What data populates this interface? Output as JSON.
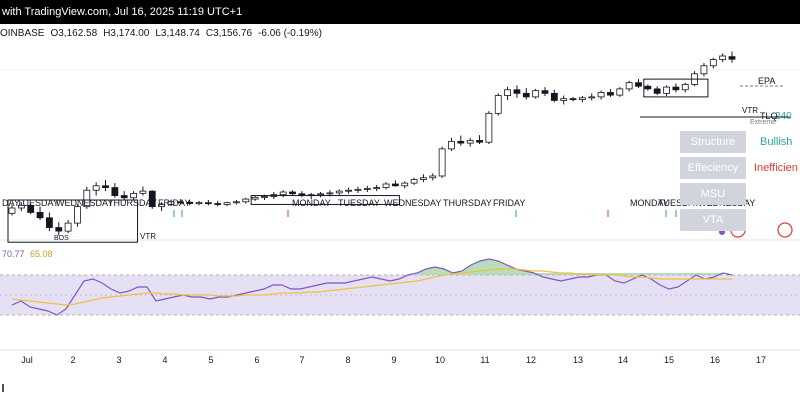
{
  "header": {
    "text": "with TradingView.com, Jul 16, 2025 11:19 UTC+1"
  },
  "ohlc": {
    "symbol": "OINBASE",
    "open_label": "O",
    "open": "3,162.58",
    "high_label": "H",
    "high": "3,174.00",
    "low_label": "L",
    "low": "3,148.74",
    "close_label": "C",
    "close": "3,156.76",
    "change": "-6.06 (-0.19%)"
  },
  "colors": {
    "up": "#ffffff",
    "down": "#131722",
    "candle_border": "#131722",
    "rsi_line": "#7e57c2",
    "rsi_ma": "#f0c040",
    "rsi_band": "#e6e0f5",
    "bullish": "#26a69a",
    "inefficient": "#e53935",
    "label_box": "#d1d4dc"
  },
  "chart_data": [
    {
      "type": "candlestick",
      "title": "",
      "ylim": [
        2750,
        3200
      ],
      "y_tick_labels": [],
      "candles": [
        [
          2810,
          2830,
          2805,
          2822
        ],
        [
          2822,
          2835,
          2815,
          2828
        ],
        [
          2828,
          2832,
          2808,
          2812
        ],
        [
          2812,
          2825,
          2795,
          2800
        ],
        [
          2800,
          2812,
          2770,
          2778
        ],
        [
          2778,
          2790,
          2760,
          2770
        ],
        [
          2770,
          2795,
          2765,
          2788
        ],
        [
          2788,
          2830,
          2780,
          2825
        ],
        [
          2825,
          2870,
          2820,
          2862
        ],
        [
          2862,
          2880,
          2850,
          2872
        ],
        [
          2872,
          2885,
          2860,
          2868
        ],
        [
          2868,
          2878,
          2845,
          2850
        ],
        [
          2850,
          2860,
          2840,
          2845
        ],
        [
          2845,
          2860,
          2840,
          2855
        ],
        [
          2855,
          2870,
          2850,
          2860
        ],
        [
          2860,
          2862,
          2820,
          2825
        ],
        [
          2825,
          2835,
          2815,
          2830
        ],
        [
          2830,
          2840,
          2826,
          2836
        ],
        [
          2836,
          2842,
          2830,
          2835
        ],
        [
          2835,
          2840,
          2828,
          2832
        ],
        [
          2832,
          2838,
          2828,
          2834
        ],
        [
          2834,
          2840,
          2828,
          2832
        ],
        [
          2832,
          2838,
          2826,
          2830
        ],
        [
          2830,
          2836,
          2826,
          2834
        ],
        [
          2834,
          2840,
          2830,
          2836
        ],
        [
          2836,
          2845,
          2832,
          2842
        ],
        [
          2842,
          2850,
          2838,
          2846
        ],
        [
          2846,
          2852,
          2840,
          2848
        ],
        [
          2848,
          2858,
          2842,
          2852
        ],
        [
          2852,
          2862,
          2846,
          2858
        ],
        [
          2858,
          2862,
          2850,
          2854
        ],
        [
          2854,
          2860,
          2846,
          2850
        ],
        [
          2850,
          2856,
          2842,
          2852
        ],
        [
          2852,
          2858,
          2846,
          2854
        ],
        [
          2854,
          2862,
          2848,
          2856
        ],
        [
          2856,
          2864,
          2850,
          2860
        ],
        [
          2860,
          2868,
          2854,
          2862
        ],
        [
          2862,
          2870,
          2856,
          2864
        ],
        [
          2864,
          2872,
          2858,
          2866
        ],
        [
          2866,
          2874,
          2860,
          2868
        ],
        [
          2868,
          2880,
          2864,
          2876
        ],
        [
          2876,
          2884,
          2870,
          2872
        ],
        [
          2872,
          2882,
          2866,
          2878
        ],
        [
          2878,
          2890,
          2874,
          2886
        ],
        [
          2886,
          2898,
          2880,
          2890
        ],
        [
          2890,
          2900,
          2884,
          2894
        ],
        [
          2894,
          2960,
          2890,
          2955
        ],
        [
          2955,
          2980,
          2950,
          2972
        ],
        [
          2972,
          2985,
          2962,
          2968
        ],
        [
          2968,
          2980,
          2960,
          2974
        ],
        [
          2974,
          2986,
          2966,
          2970
        ],
        [
          2970,
          3040,
          2966,
          3035
        ],
        [
          3035,
          3080,
          3030,
          3075
        ],
        [
          3075,
          3095,
          3065,
          3088
        ],
        [
          3088,
          3098,
          3070,
          3080
        ],
        [
          3080,
          3092,
          3066,
          3072
        ],
        [
          3072,
          3090,
          3068,
          3086
        ],
        [
          3086,
          3094,
          3074,
          3080
        ],
        [
          3080,
          3088,
          3060,
          3064
        ],
        [
          3064,
          3075,
          3055,
          3068
        ],
        [
          3068,
          3072,
          3062,
          3066
        ],
        [
          3066,
          3074,
          3060,
          3070
        ],
        [
          3070,
          3080,
          3064,
          3072
        ],
        [
          3072,
          3086,
          3066,
          3082
        ],
        [
          3082,
          3090,
          3072,
          3076
        ],
        [
          3076,
          3094,
          3072,
          3090
        ],
        [
          3090,
          3108,
          3084,
          3104
        ],
        [
          3104,
          3112,
          3092,
          3096
        ],
        [
          3096,
          3100,
          3086,
          3090
        ],
        [
          3090,
          3096,
          3076,
          3080
        ],
        [
          3080,
          3098,
          3074,
          3094
        ],
        [
          3094,
          3102,
          3082,
          3088
        ],
        [
          3088,
          3104,
          3082,
          3100
        ],
        [
          3100,
          3130,
          3096,
          3124
        ],
        [
          3124,
          3148,
          3118,
          3142
        ],
        [
          3142,
          3160,
          3136,
          3156
        ],
        [
          3156,
          3170,
          3150,
          3164
        ],
        [
          3162.58,
          3174,
          3148.74,
          3156.76
        ]
      ],
      "annotations": [
        {
          "text": "EPA"
        },
        {
          "text": "VTR"
        },
        {
          "text": "VTR"
        },
        {
          "text": "TLQ"
        },
        {
          "text": "240"
        },
        {
          "text": "Extreme"
        },
        {
          "text": "BOS"
        }
      ],
      "day_labels": [
        "DAY",
        "TUESDAY",
        "WEDNESDAY",
        "THURSDAY",
        "FRIDAY",
        "MONDAY",
        "TUESDAY",
        "WEDNESDAY",
        "THURSDAY",
        "FRIDAY",
        "MONDAY",
        "TUESDAY",
        "WEDNESDAY"
      ],
      "x_tick_labels": [
        "Jul",
        "2",
        "3",
        "4",
        "5",
        "6",
        "7",
        "8",
        "9",
        "10",
        "11",
        "12",
        "13",
        "14",
        "15",
        "16",
        "17"
      ]
    },
    {
      "type": "line",
      "title": "",
      "ylim": [
        0,
        100
      ],
      "legend_values": [
        "70.77",
        "65.08"
      ],
      "series": [
        {
          "values": [
            40,
            44,
            38,
            36,
            34,
            30,
            36,
            50,
            64,
            66,
            62,
            56,
            52,
            54,
            58,
            58,
            44,
            46,
            48,
            50,
            48,
            48,
            46,
            48,
            48,
            50,
            52,
            54,
            56,
            60,
            60,
            56,
            56,
            58,
            60,
            62,
            62,
            62,
            64,
            66,
            68,
            66,
            64,
            66,
            70,
            72,
            76,
            78,
            76,
            72,
            74,
            80,
            84,
            86,
            84,
            80,
            76,
            74,
            72,
            68,
            66,
            64,
            66,
            68,
            68,
            70,
            70,
            64,
            62,
            66,
            70,
            66,
            60,
            56,
            58,
            64,
            70,
            66,
            68,
            72,
            70
          ]
        },
        {
          "values": [
            46,
            45,
            44,
            43,
            42,
            41,
            40,
            41,
            43,
            45,
            47,
            48,
            49,
            50,
            51,
            52,
            52,
            51,
            51,
            50,
            50,
            50,
            50,
            49,
            49,
            49,
            50,
            50,
            50,
            51,
            52,
            52,
            52,
            53,
            53,
            54,
            55,
            56,
            57,
            58,
            59,
            60,
            61,
            62,
            63,
            64,
            66,
            68,
            70,
            71,
            72,
            73,
            74,
            75,
            76,
            76,
            76,
            75,
            74,
            74,
            73,
            72,
            72,
            71,
            71,
            70,
            70,
            70,
            69,
            68,
            68,
            67,
            66,
            66,
            66,
            66,
            66,
            66,
            66,
            66,
            66
          ]
        }
      ]
    }
  ],
  "panel": {
    "structure_label": "Structure",
    "structure_value": "Bullish",
    "efficiency_label": "Effeciency",
    "efficiency_value": "Inefficien",
    "msu_label": "MSU",
    "vta_label": "VTA"
  }
}
